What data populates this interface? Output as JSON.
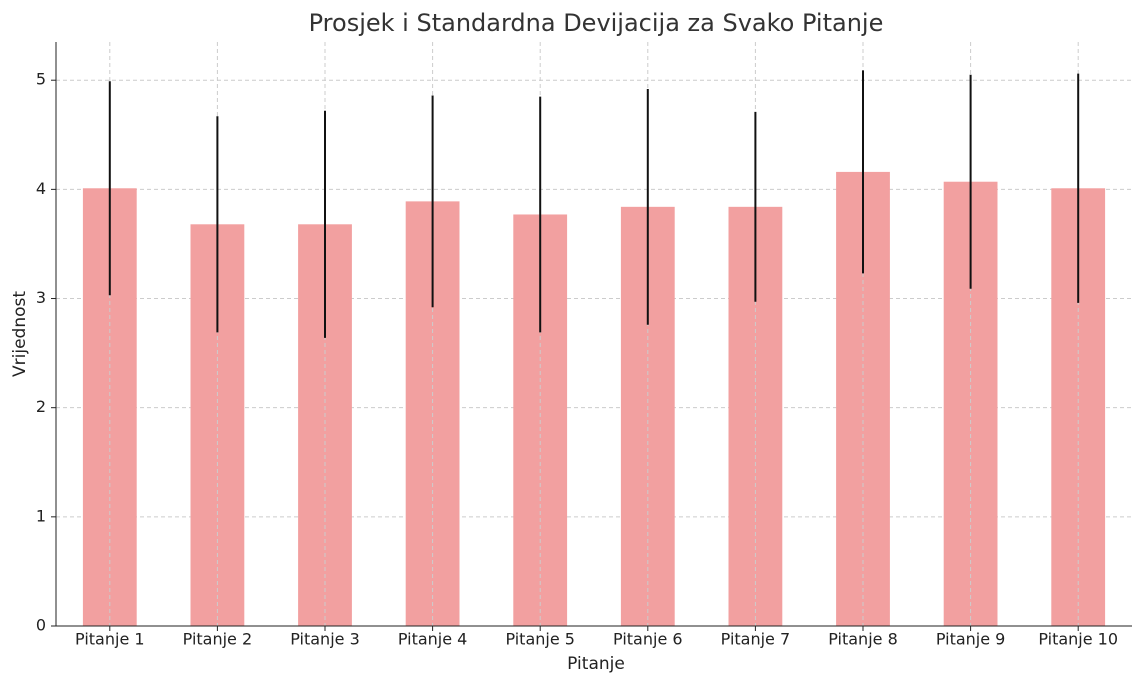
{
  "chart_data": {
    "type": "bar",
    "title": "Prosjek i Standardna Devijacija za Svako Pitanje",
    "xlabel": "Pitanje",
    "ylabel": "Vrijednost",
    "categories": [
      "Pitanje 1",
      "Pitanje 2",
      "Pitanje 3",
      "Pitanje 4",
      "Pitanje 5",
      "Pitanje 6",
      "Pitanje 7",
      "Pitanje 8",
      "Pitanje 9",
      "Pitanje 10"
    ],
    "values": [
      4.01,
      3.68,
      3.68,
      3.89,
      3.77,
      3.84,
      3.84,
      4.16,
      4.07,
      4.01
    ],
    "errors": [
      0.98,
      0.99,
      1.04,
      0.97,
      1.08,
      1.08,
      0.87,
      0.93,
      0.98,
      1.05
    ],
    "color": "#f2a0a0",
    "error_color": "#111111",
    "ylim": [
      0,
      5.35
    ],
    "yticks": [
      0,
      1,
      2,
      3,
      4,
      5
    ],
    "grid": true
  }
}
